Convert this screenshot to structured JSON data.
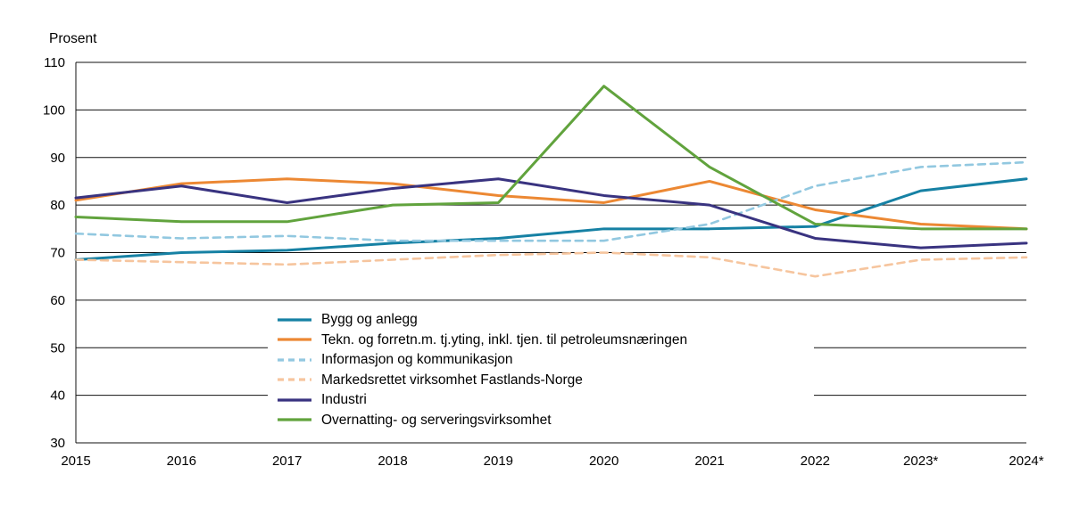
{
  "chart_data": {
    "type": "line",
    "title": "",
    "ylabel": "Prosent",
    "xlabel": "",
    "ylim": [
      30,
      110
    ],
    "yticks": [
      30,
      40,
      50,
      60,
      70,
      80,
      90,
      100,
      110
    ],
    "grid": true,
    "legend_position": "inside-bottom-center",
    "categories": [
      "2015",
      "2016",
      "2017",
      "2018",
      "2019",
      "2020",
      "2021",
      "2022",
      "2023*",
      "2024*"
    ],
    "series": [
      {
        "name": "Bygg og anlegg",
        "color": "#1681a4",
        "dash": "solid",
        "values": [
          68.5,
          70,
          70.5,
          72,
          73,
          75,
          75,
          75.5,
          83,
          85.5
        ]
      },
      {
        "name": "Tekn. og forretn.m. tj.yting, inkl. tjen. til petroleumsnæringen",
        "color": "#ec8833",
        "dash": "solid",
        "values": [
          81,
          84.5,
          85.5,
          84.5,
          82,
          80.5,
          85,
          79,
          76,
          75
        ]
      },
      {
        "name": "Informasjon og kommunikasjon",
        "color": "#92c8e0",
        "dash": "dashed",
        "values": [
          74,
          73,
          73.5,
          72.5,
          72.5,
          72.5,
          76,
          84,
          88,
          89
        ]
      },
      {
        "name": "Markedsrettet virksomhet Fastlands-Norge",
        "color": "#f6c59e",
        "dash": "dashed",
        "values": [
          68.5,
          68,
          67.5,
          68.5,
          69.5,
          70,
          69,
          65,
          68.5,
          69
        ]
      },
      {
        "name": "Industri",
        "color": "#393380",
        "dash": "solid",
        "values": [
          81.5,
          84,
          80.5,
          83.5,
          85.5,
          82,
          80,
          73,
          71,
          72
        ]
      },
      {
        "name": "Overnatting- og serveringsvirksomhet",
        "color": "#61a33d",
        "dash": "solid",
        "values": [
          77.5,
          76.5,
          76.5,
          80,
          80.5,
          105,
          88,
          76,
          75,
          75
        ]
      }
    ]
  }
}
